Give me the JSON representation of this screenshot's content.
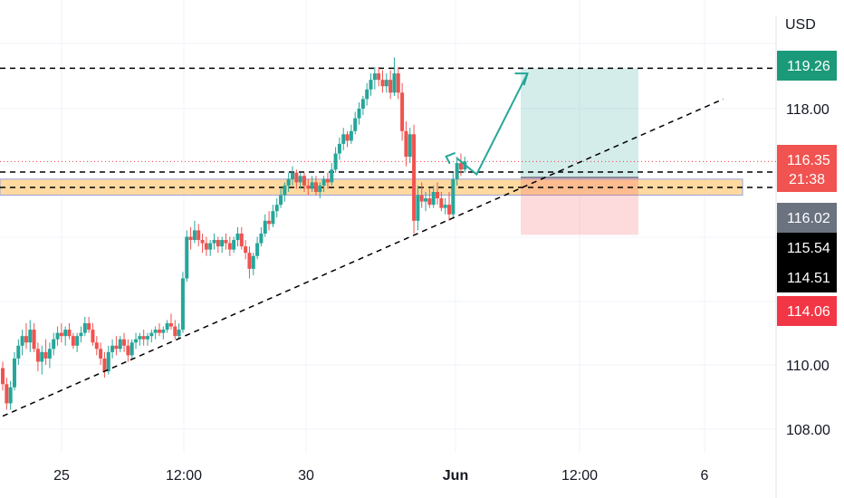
{
  "chart_data": {
    "type": "candlestick",
    "currency": "USD",
    "x_ticks": [
      "25",
      "12:00",
      "30",
      "Jun",
      "12:00",
      "6"
    ],
    "x_tick_bold": [
      false,
      false,
      false,
      true,
      false,
      false
    ],
    "y_ticks": [
      "118.00",
      "110.00",
      "108.00"
    ],
    "price_labels": [
      {
        "text": "119.26",
        "value": 119.26,
        "color": "#1b9a7a"
      },
      {
        "text": "116.35",
        "value": 116.35,
        "color": "#f05350",
        "sub": "21:38"
      },
      {
        "text": "116.02",
        "value": 116.02,
        "color": "#6b7280"
      },
      {
        "text": "115.54",
        "value": 115.54,
        "color": "#000000"
      },
      {
        "text": "114.51",
        "value": 114.51,
        "color": "#000000"
      },
      {
        "text": "114.06",
        "value": 114.06,
        "color": "#f23645"
      }
    ],
    "horizontal_levels": [
      119.26,
      116.02,
      115.54
    ],
    "current_price": 116.35,
    "zone": {
      "low": 115.3,
      "high": 115.8,
      "color": "#ffcc80"
    },
    "position": {
      "entry": 115.85,
      "target": 119.26,
      "stop": 114.06
    },
    "trendline": {
      "from": {
        "t": 0.0,
        "price": 108.4
      },
      "to": {
        "t": 0.92,
        "price": 118.3
      }
    },
    "projection": [
      {
        "t": 0.58,
        "price": 116.45
      },
      {
        "t": 0.605,
        "price": 115.95
      },
      {
        "t": 0.67,
        "price": 119.1
      }
    ],
    "candles": [
      [
        0,
        109.9,
        110.1,
        109.2,
        109.4
      ],
      [
        0.005,
        109.4,
        109.6,
        108.6,
        108.8
      ],
      [
        0.01,
        108.8,
        109.5,
        108.6,
        109.3
      ],
      [
        0.015,
        109.3,
        110.4,
        109.2,
        110.2
      ],
      [
        0.02,
        110.2,
        110.8,
        110.0,
        110.6
      ],
      [
        0.025,
        110.6,
        111.1,
        110.3,
        110.9
      ],
      [
        0.03,
        110.9,
        111.3,
        110.5,
        110.7
      ],
      [
        0.035,
        110.7,
        111.4,
        110.4,
        111.1
      ],
      [
        0.04,
        111.1,
        111.3,
        110.4,
        110.5
      ],
      [
        0.045,
        110.5,
        110.7,
        109.8,
        110.1
      ],
      [
        0.05,
        110.1,
        110.6,
        109.7,
        110.4
      ],
      [
        0.055,
        110.4,
        110.8,
        110.0,
        110.2
      ],
      [
        0.06,
        110.2,
        110.7,
        109.9,
        110.5
      ],
      [
        0.065,
        110.5,
        111.0,
        110.3,
        110.8
      ],
      [
        0.07,
        110.8,
        111.2,
        110.6,
        111.0
      ],
      [
        0.075,
        111.0,
        111.3,
        110.7,
        110.9
      ],
      [
        0.08,
        110.9,
        111.2,
        110.6,
        111.1
      ],
      [
        0.085,
        111.1,
        111.3,
        110.8,
        110.9
      ],
      [
        0.09,
        110.9,
        111.0,
        110.5,
        110.6
      ],
      [
        0.095,
        110.6,
        111.0,
        110.4,
        110.9
      ],
      [
        0.1,
        110.9,
        111.2,
        110.7,
        111.0
      ],
      [
        0.105,
        111.0,
        111.5,
        110.9,
        111.3
      ],
      [
        0.11,
        111.3,
        111.5,
        111.0,
        111.1
      ],
      [
        0.115,
        111.1,
        111.3,
        110.6,
        110.7
      ],
      [
        0.12,
        110.7,
        110.9,
        110.3,
        110.5
      ],
      [
        0.125,
        110.5,
        110.7,
        110.0,
        110.2
      ],
      [
        0.13,
        110.2,
        110.4,
        109.6,
        109.8
      ],
      [
        0.135,
        109.8,
        110.6,
        109.7,
        110.4
      ],
      [
        0.14,
        110.4,
        110.8,
        110.2,
        110.6
      ],
      [
        0.145,
        110.6,
        110.9,
        110.3,
        110.5
      ],
      [
        0.15,
        110.5,
        110.9,
        110.4,
        110.8
      ],
      [
        0.155,
        110.8,
        111.0,
        110.4,
        110.6
      ],
      [
        0.16,
        110.6,
        110.8,
        110.1,
        110.3
      ],
      [
        0.165,
        110.3,
        110.8,
        110.2,
        110.7
      ],
      [
        0.17,
        110.7,
        111.0,
        110.5,
        110.8
      ],
      [
        0.175,
        110.8,
        111.0,
        110.6,
        110.9
      ],
      [
        0.18,
        110.9,
        111.1,
        110.6,
        110.8
      ],
      [
        0.185,
        110.8,
        111.0,
        110.6,
        110.9
      ],
      [
        0.19,
        110.9,
        111.1,
        110.7,
        111.0
      ],
      [
        0.195,
        111.0,
        111.2,
        110.8,
        111.1
      ],
      [
        0.2,
        111.1,
        111.3,
        110.9,
        111.0
      ],
      [
        0.205,
        111.0,
        111.2,
        110.8,
        111.1
      ],
      [
        0.21,
        111.1,
        111.4,
        111.0,
        111.3
      ],
      [
        0.215,
        111.3,
        111.6,
        111.1,
        111.2
      ],
      [
        0.22,
        111.2,
        111.4,
        110.8,
        110.9
      ],
      [
        0.225,
        110.9,
        111.3,
        110.8,
        111.1
      ],
      [
        0.23,
        111.1,
        112.9,
        111.0,
        112.7
      ],
      [
        0.235,
        112.7,
        114.2,
        112.6,
        114.0
      ],
      [
        0.24,
        114.0,
        114.3,
        113.6,
        113.9
      ],
      [
        0.245,
        113.9,
        114.5,
        113.8,
        114.2
      ],
      [
        0.25,
        114.2,
        114.4,
        113.7,
        113.9
      ],
      [
        0.255,
        113.9,
        114.1,
        113.5,
        113.8
      ],
      [
        0.26,
        113.8,
        114.0,
        113.4,
        113.6
      ],
      [
        0.265,
        113.6,
        113.9,
        113.4,
        113.8
      ],
      [
        0.27,
        113.8,
        114.1,
        113.6,
        113.9
      ],
      [
        0.275,
        113.9,
        114.0,
        113.5,
        113.7
      ],
      [
        0.28,
        113.7,
        114.0,
        113.5,
        113.9
      ],
      [
        0.285,
        113.9,
        114.1,
        113.6,
        113.8
      ],
      [
        0.29,
        113.8,
        114.0,
        113.4,
        113.6
      ],
      [
        0.295,
        113.6,
        114.0,
        113.5,
        113.9
      ],
      [
        0.3,
        113.9,
        114.3,
        113.7,
        114.1
      ],
      [
        0.305,
        114.1,
        114.3,
        113.6,
        113.7
      ],
      [
        0.31,
        113.7,
        113.9,
        113.3,
        113.5
      ],
      [
        0.315,
        113.5,
        113.7,
        112.7,
        113.0
      ],
      [
        0.32,
        113.0,
        113.5,
        112.8,
        113.4
      ],
      [
        0.325,
        113.4,
        114.0,
        113.3,
        113.8
      ],
      [
        0.33,
        113.8,
        114.3,
        113.7,
        114.1
      ],
      [
        0.335,
        114.1,
        114.7,
        114.0,
        114.5
      ],
      [
        0.34,
        114.5,
        114.8,
        114.2,
        114.4
      ],
      [
        0.345,
        114.4,
        115.0,
        114.3,
        114.8
      ],
      [
        0.35,
        114.8,
        115.2,
        114.6,
        115.0
      ],
      [
        0.355,
        115.0,
        115.5,
        114.9,
        115.3
      ],
      [
        0.36,
        115.3,
        115.7,
        115.1,
        115.6
      ],
      [
        0.365,
        115.6,
        116.0,
        115.4,
        115.8
      ],
      [
        0.37,
        115.8,
        116.2,
        115.6,
        116.0
      ],
      [
        0.375,
        116.0,
        116.1,
        115.5,
        115.7
      ],
      [
        0.38,
        115.7,
        116.0,
        115.5,
        115.9
      ],
      [
        0.385,
        115.9,
        116.0,
        115.4,
        115.6
      ],
      [
        0.39,
        115.6,
        115.8,
        115.3,
        115.5
      ],
      [
        0.395,
        115.5,
        115.9,
        115.4,
        115.7
      ],
      [
        0.4,
        115.7,
        115.9,
        115.3,
        115.4
      ],
      [
        0.405,
        115.4,
        115.7,
        115.2,
        115.6
      ],
      [
        0.41,
        115.6,
        115.9,
        115.4,
        115.8
      ],
      [
        0.415,
        115.8,
        116.0,
        115.5,
        115.7
      ],
      [
        0.42,
        115.7,
        116.3,
        115.6,
        116.1
      ],
      [
        0.425,
        116.1,
        116.8,
        116.0,
        116.6
      ],
      [
        0.43,
        116.6,
        117.1,
        116.4,
        116.9
      ],
      [
        0.435,
        116.9,
        117.4,
        116.7,
        117.2
      ],
      [
        0.44,
        117.2,
        117.3,
        116.8,
        117.0
      ],
      [
        0.445,
        117.0,
        117.5,
        116.9,
        117.3
      ],
      [
        0.45,
        117.3,
        117.9,
        117.2,
        117.7
      ],
      [
        0.455,
        117.7,
        118.2,
        117.5,
        118.0
      ],
      [
        0.46,
        118.0,
        118.4,
        117.8,
        118.3
      ],
      [
        0.465,
        118.3,
        118.8,
        118.1,
        118.6
      ],
      [
        0.47,
        118.6,
        119.1,
        118.4,
        118.9
      ],
      [
        0.475,
        118.9,
        119.3,
        118.6,
        119.1
      ],
      [
        0.48,
        119.1,
        119.3,
        118.7,
        118.9
      ],
      [
        0.485,
        118.9,
        119.2,
        118.5,
        118.7
      ],
      [
        0.49,
        118.7,
        119.1,
        118.5,
        118.9
      ],
      [
        0.495,
        118.9,
        119.2,
        118.3,
        118.5
      ],
      [
        0.5,
        118.5,
        119.6,
        118.4,
        119.1
      ],
      [
        0.505,
        119.1,
        119.3,
        118.3,
        118.5
      ],
      [
        0.51,
        118.5,
        118.8,
        117.0,
        117.3
      ],
      [
        0.515,
        117.3,
        117.6,
        116.2,
        116.5
      ],
      [
        0.52,
        116.5,
        117.4,
        116.3,
        117.2
      ],
      [
        0.525,
        117.2,
        117.5,
        114.1,
        114.5
      ],
      [
        0.53,
        114.5,
        115.6,
        114.2,
        115.3
      ],
      [
        0.535,
        115.3,
        115.7,
        114.9,
        115.1
      ],
      [
        0.54,
        115.1,
        115.4,
        114.8,
        115.2
      ],
      [
        0.545,
        115.2,
        115.5,
        114.9,
        115.0
      ],
      [
        0.55,
        115.0,
        115.6,
        114.9,
        115.4
      ],
      [
        0.555,
        115.4,
        115.7,
        115.0,
        115.2
      ],
      [
        0.56,
        115.2,
        115.4,
        114.8,
        114.9
      ],
      [
        0.565,
        114.9,
        115.2,
        114.7,
        115.0
      ],
      [
        0.57,
        115.0,
        115.4,
        114.5,
        114.7
      ],
      [
        0.575,
        114.7,
        116.0,
        114.6,
        115.8
      ],
      [
        0.58,
        115.8,
        116.5,
        115.6,
        116.3
      ],
      [
        0.585,
        116.3,
        116.6,
        115.9,
        116.1
      ],
      [
        0.59,
        116.1,
        116.5,
        116.0,
        116.35
      ]
    ]
  }
}
